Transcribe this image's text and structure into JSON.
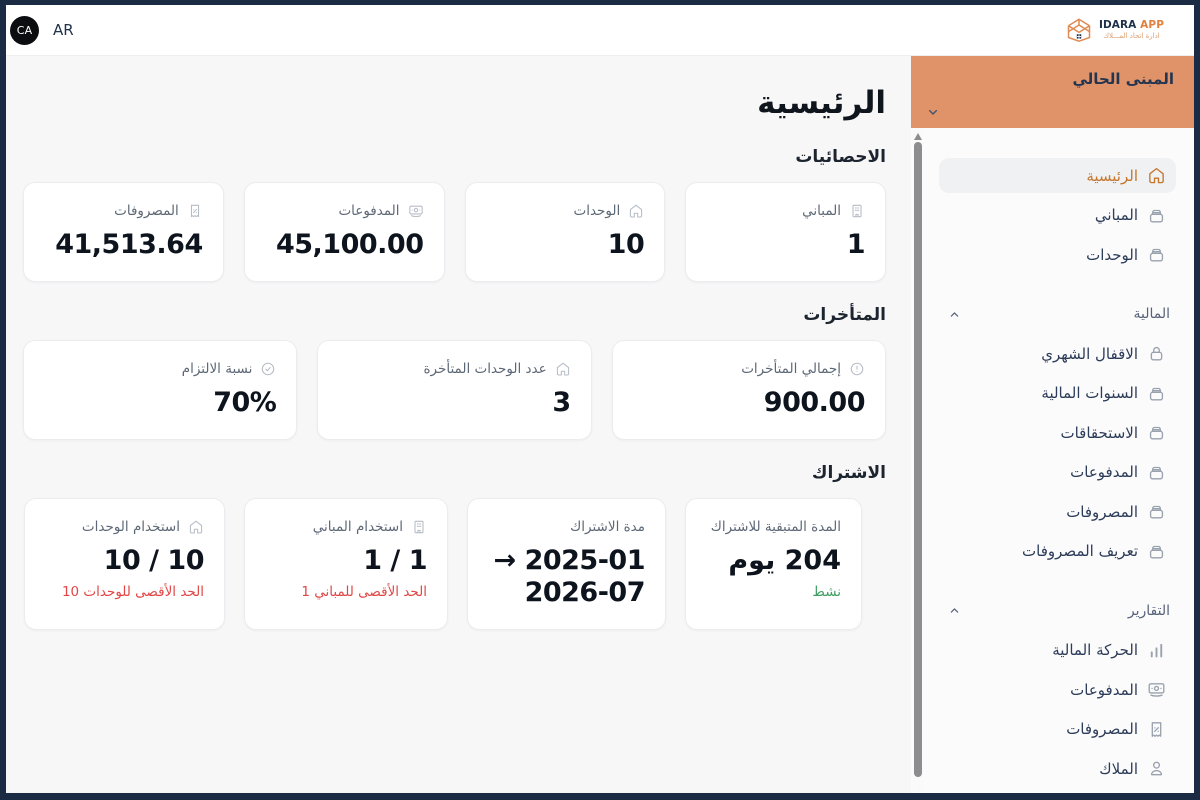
{
  "header": {
    "avatar_initials": "CA",
    "language_label": "AR",
    "logo": {
      "name_primary": "IDARA",
      "name_secondary": "APP",
      "tagline": "ادارة اتحاد المـــلاك"
    }
  },
  "sidebar": {
    "building_selector": {
      "label": "المبنى الحالي",
      "icon": "chevron-down-icon"
    },
    "menu": [
      {
        "type": "item",
        "label": "الرئيسية",
        "icon": "home-icon",
        "active": true
      },
      {
        "type": "item",
        "label": "المباني",
        "icon": "box-icon",
        "active": false
      },
      {
        "type": "item",
        "label": "الوحدات",
        "icon": "box-icon",
        "active": false
      },
      {
        "type": "section",
        "label": "المالية",
        "icon": "chevron-up-icon"
      },
      {
        "type": "item",
        "label": "الاقفال الشهري",
        "icon": "lock-icon",
        "active": false
      },
      {
        "type": "item",
        "label": "السنوات المالية",
        "icon": "box-icon",
        "active": false
      },
      {
        "type": "item",
        "label": "الاستحقاقات",
        "icon": "box-icon",
        "active": false
      },
      {
        "type": "item",
        "label": "المدفوعات",
        "icon": "box-icon",
        "active": false
      },
      {
        "type": "item",
        "label": "المصروفات",
        "icon": "box-icon",
        "active": false
      },
      {
        "type": "item",
        "label": "تعريف المصروفات",
        "icon": "box-icon",
        "active": false
      },
      {
        "type": "section",
        "label": "التقارير",
        "icon": "chevron-up-icon"
      },
      {
        "type": "item",
        "label": "الحركة المالية",
        "icon": "bar-chart-icon",
        "active": false
      },
      {
        "type": "item",
        "label": "المدفوعات",
        "icon": "banknote-icon",
        "active": false
      },
      {
        "type": "item",
        "label": "المصروفات",
        "icon": "receipt-percent-icon",
        "active": false
      },
      {
        "type": "item",
        "label": "الملاك",
        "icon": "person-icon",
        "active": false
      }
    ]
  },
  "main": {
    "title": "الرئيسية",
    "sections": [
      {
        "id": "stats",
        "label": "الاحصائيات",
        "cards": [
          {
            "title": "المباني",
            "icon": "building-icon",
            "value": "1"
          },
          {
            "title": "الوحدات",
            "icon": "home-icon",
            "value": "10"
          },
          {
            "title": "المدفوعات",
            "icon": "banknote-icon",
            "value": "45,100.00"
          },
          {
            "title": "المصروفات",
            "icon": "receipt-percent-icon",
            "value": "41,513.64"
          }
        ]
      },
      {
        "id": "arrears",
        "label": "المتأخرات",
        "cards": [
          {
            "title": "إجمالي المتأخرات",
            "icon": "alert-circle-icon",
            "value": "900.00"
          },
          {
            "title": "عدد الوحدات المتأخرة",
            "icon": "home-icon",
            "value": "3"
          },
          {
            "title": "نسبة الالتزام",
            "icon": "check-circle-icon",
            "value": "70%"
          }
        ]
      },
      {
        "id": "subscription",
        "label": "الاشتراك",
        "cards": [
          {
            "title": "المدة المتبقية للاشتراك",
            "value": "204 يوم",
            "note": {
              "text": "نشط",
              "color": "green"
            }
          },
          {
            "title": "مدة الاشتراك",
            "value": "2025-01 → 2026-07"
          },
          {
            "title": "استخدام المباني",
            "icon": "building-icon",
            "value": "1 / 1",
            "note": {
              "text": "الحد الأقصى للمباني 1",
              "color": "red"
            }
          },
          {
            "title": "استخدام الوحدات",
            "icon": "home-icon",
            "value": "10 / 10",
            "note": {
              "text": "الحد الأقصى للوحدات 10",
              "color": "red"
            }
          }
        ]
      }
    ]
  },
  "colors": {
    "frame": "#1b2b43",
    "accent_orange": "#c4772e",
    "building_selector": "#e09268",
    "red": "#e24646",
    "green": "#3f9f63"
  }
}
